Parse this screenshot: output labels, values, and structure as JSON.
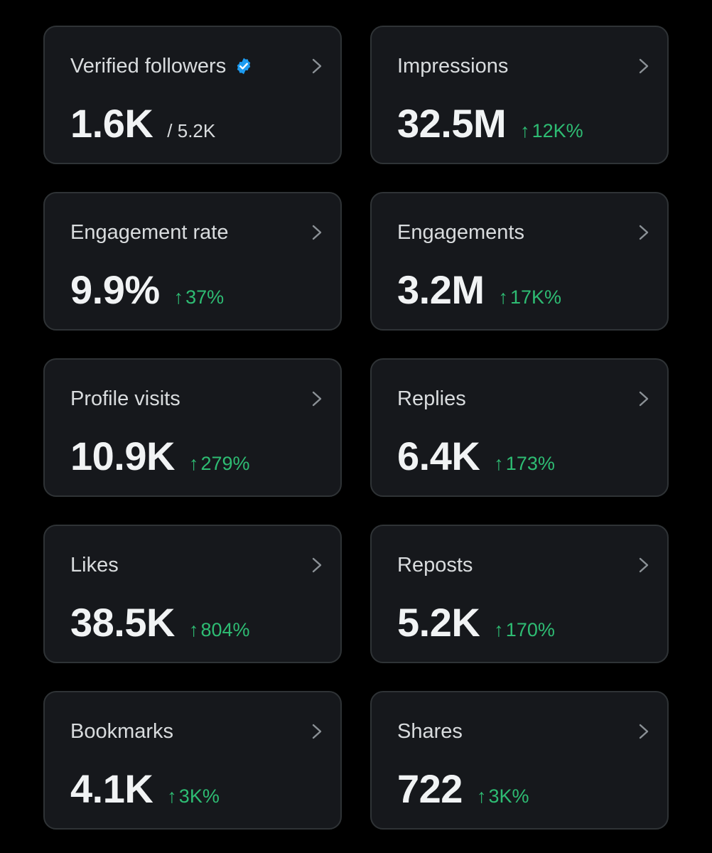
{
  "theme": {
    "background": "#000000",
    "card_background": "#16181c",
    "card_border": "#2f3336",
    "accent_green": "#2ebc73",
    "verified_blue": "#1d9bf0"
  },
  "cards": [
    {
      "title": "Verified followers",
      "value": "1.6K",
      "sub_value": "/ 5.2K",
      "verified_icon": "verified-badge-icon",
      "chevron_icon": "chevron-right-icon"
    },
    {
      "title": "Impressions",
      "value": "32.5M",
      "arrow": "↑",
      "change": "12K%",
      "chevron_icon": "chevron-right-icon"
    },
    {
      "title": "Engagement rate",
      "value": "9.9%",
      "arrow": "↑",
      "change": "37%",
      "chevron_icon": "chevron-right-icon"
    },
    {
      "title": "Engagements",
      "value": "3.2M",
      "arrow": "↑",
      "change": "17K%",
      "chevron_icon": "chevron-right-icon"
    },
    {
      "title": "Profile visits",
      "value": "10.9K",
      "arrow": "↑",
      "change": "279%",
      "chevron_icon": "chevron-right-icon"
    },
    {
      "title": "Replies",
      "value": "6.4K",
      "arrow": "↑",
      "change": "173%",
      "chevron_icon": "chevron-right-icon"
    },
    {
      "title": "Likes",
      "value": "38.5K",
      "arrow": "↑",
      "change": "804%",
      "chevron_icon": "chevron-right-icon"
    },
    {
      "title": "Reposts",
      "value": "5.2K",
      "arrow": "↑",
      "change": "170%",
      "chevron_icon": "chevron-right-icon"
    },
    {
      "title": "Bookmarks",
      "value": "4.1K",
      "arrow": "↑",
      "change": "3K%",
      "chevron_icon": "chevron-right-icon"
    },
    {
      "title": "Shares",
      "value": "722",
      "arrow": "↑",
      "change": "3K%",
      "chevron_icon": "chevron-right-icon"
    }
  ]
}
